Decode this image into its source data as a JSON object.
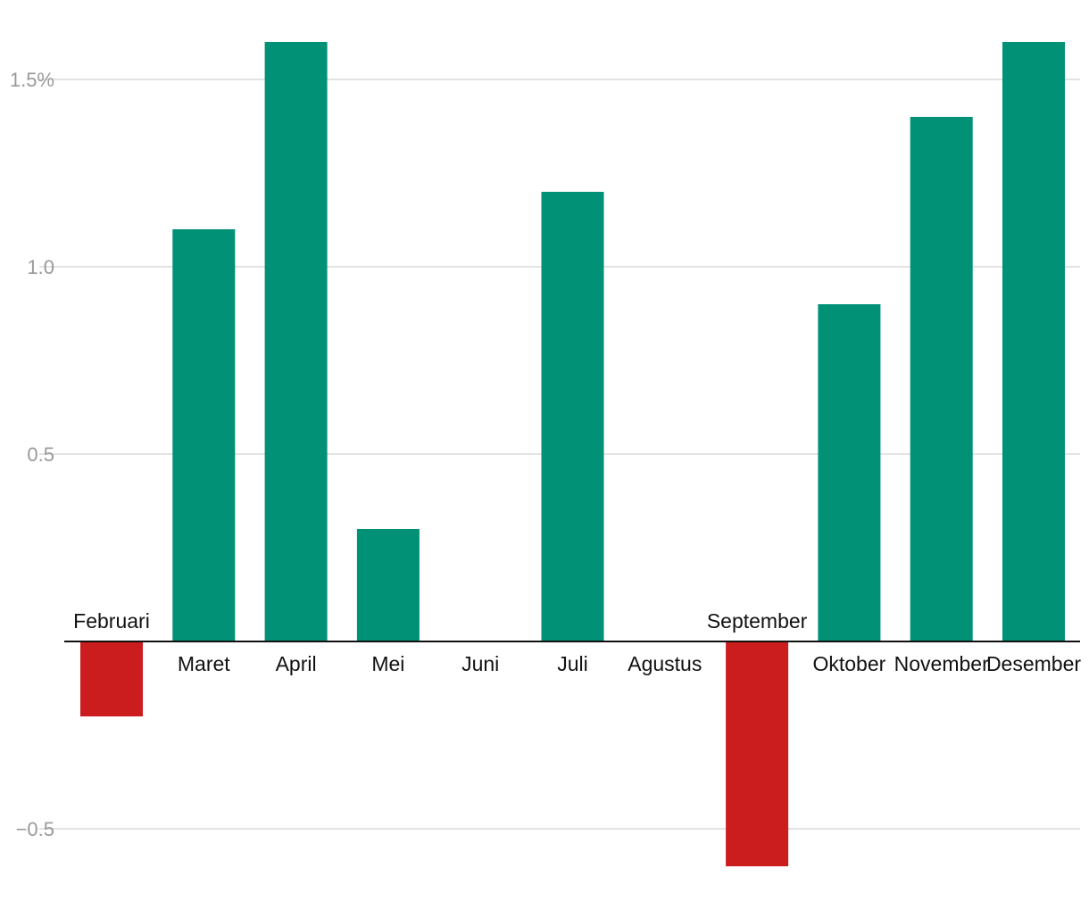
{
  "chart_data": {
    "type": "bar",
    "title": "",
    "xlabel": "",
    "ylabel": "",
    "categories": [
      "Februari",
      "Maret",
      "April",
      "Mei",
      "Juni",
      "Juli",
      "Agustus",
      "September",
      "Oktober",
      "November",
      "Desember"
    ],
    "values": [
      -0.2,
      1.1,
      1.6,
      0.3,
      0.0,
      1.2,
      0.0,
      -0.6,
      0.9,
      1.4,
      1.6
    ],
    "ylim": [
      -0.7,
      1.6
    ],
    "yticks": [
      {
        "value": 1.5,
        "label": "1.5%"
      },
      {
        "value": 1.0,
        "label": "1.0"
      },
      {
        "value": 0.5,
        "label": "0.5"
      },
      {
        "value": -0.5,
        "label": "−0.5"
      }
    ],
    "colors": {
      "positive": "#009177",
      "negative": "#cb1c1e"
    },
    "grid": true,
    "legend": "none"
  }
}
